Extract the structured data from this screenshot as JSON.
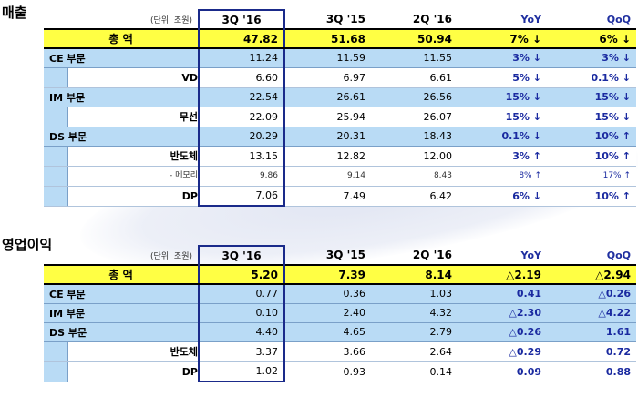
{
  "sales": {
    "title": "매출",
    "unit": "(단위: 조원)",
    "headers": [
      "3Q '16",
      "3Q '15",
      "2Q '16",
      "YoY",
      "QoQ"
    ],
    "rows": [
      {
        "label": "총     액",
        "type": "total",
        "values": [
          "47.82",
          "51.68",
          "50.94",
          "7% ↓",
          "6% ↓"
        ]
      },
      {
        "label": "CE 부문",
        "type": "seg",
        "values": [
          "11.24",
          "11.59",
          "11.55",
          "3% ↓",
          "3% ↓"
        ]
      },
      {
        "label": "VD",
        "type": "sub",
        "values": [
          "6.60",
          "6.97",
          "6.61",
          "5% ↓",
          "0.1% ↓"
        ]
      },
      {
        "label": "IM 부문",
        "type": "seg",
        "values": [
          "22.54",
          "26.61",
          "26.56",
          "15% ↓",
          "15% ↓"
        ]
      },
      {
        "label": "무선",
        "type": "sub",
        "values": [
          "22.09",
          "25.94",
          "26.07",
          "15% ↓",
          "15% ↓"
        ]
      },
      {
        "label": "DS 부문",
        "type": "seg",
        "values": [
          "20.29",
          "20.31",
          "18.43",
          "0.1% ↓",
          "10% ↑"
        ]
      },
      {
        "label": "반도체",
        "type": "sub",
        "values": [
          "13.15",
          "12.82",
          "12.00",
          "3% ↑",
          "10% ↑"
        ]
      },
      {
        "label": "- 메모리",
        "type": "small",
        "values": [
          "9.86",
          "9.14",
          "8.43",
          "8% ↑",
          "17% ↑"
        ]
      },
      {
        "label": "DP",
        "type": "sub",
        "values": [
          "7.06",
          "7.49",
          "6.42",
          "6% ↓",
          "10% ↑"
        ]
      }
    ]
  },
  "op": {
    "title": "영업이익",
    "unit": "(단위: 조원)",
    "headers": [
      "3Q '16",
      "3Q '15",
      "2Q '16",
      "YoY",
      "QoQ"
    ],
    "rows": [
      {
        "label": "총     액",
        "type": "total",
        "values": [
          "5.20",
          "7.39",
          "8.14",
          "△2.19",
          "△2.94"
        ]
      },
      {
        "label": "CE 부문",
        "type": "seg",
        "values": [
          "0.77",
          "0.36",
          "1.03",
          "0.41",
          "△0.26"
        ]
      },
      {
        "label": "IM 부문",
        "type": "seg",
        "values": [
          "0.10",
          "2.40",
          "4.32",
          "△2.30",
          "△4.22"
        ]
      },
      {
        "label": "DS 부문",
        "type": "seg",
        "values": [
          "4.40",
          "4.65",
          "2.79",
          "△0.26",
          "1.61"
        ]
      },
      {
        "label": "반도체",
        "type": "sub",
        "values": [
          "3.37",
          "3.66",
          "2.64",
          "△0.29",
          "0.72"
        ]
      },
      {
        "label": "DP",
        "type": "sub",
        "values": [
          "1.02",
          "0.93",
          "0.14",
          "0.09",
          "0.88"
        ]
      }
    ]
  }
}
